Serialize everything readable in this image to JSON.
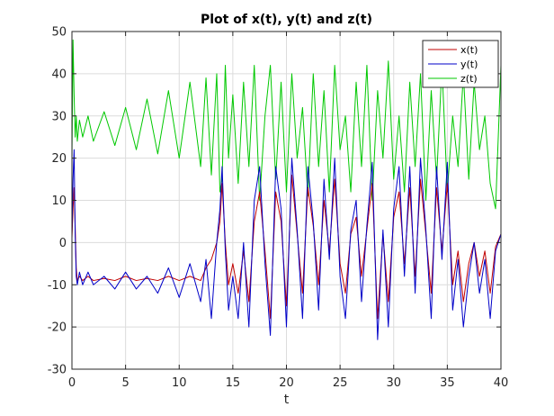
{
  "chart_data": {
    "type": "line",
    "title": "Plot of x(t), y(t) and z(t)",
    "xlabel": "t",
    "ylabel": "",
    "xlim": [
      0,
      40
    ],
    "ylim": [
      -30,
      50
    ],
    "xticks": [
      0,
      5,
      10,
      15,
      20,
      25,
      30,
      35,
      40
    ],
    "yticks": [
      -30,
      -20,
      -10,
      0,
      10,
      20,
      30,
      40,
      50
    ],
    "grid": true,
    "legend": {
      "position": "top-right"
    },
    "series": [
      {
        "name": "x(t)",
        "color": "#c00000",
        "x": [
          0,
          0.1,
          0.2,
          0.3,
          0.4,
          0.5,
          0.7,
          1,
          1.5,
          2,
          3,
          4,
          5,
          6,
          7,
          8,
          9,
          10,
          11,
          12,
          12.5,
          13,
          13.5,
          13.8,
          14.0,
          14.3,
          14.6,
          15,
          15.5,
          16,
          16.5,
          17,
          17.5,
          18,
          18.5,
          19,
          19.5,
          20,
          20.5,
          21,
          21.5,
          22,
          22.5,
          23,
          23.5,
          24,
          24.5,
          25,
          25.5,
          26,
          26.5,
          27,
          27.5,
          28,
          28.5,
          29,
          29.5,
          30,
          30.5,
          31,
          31.5,
          32,
          32.5,
          33,
          33.5,
          34,
          34.5,
          35,
          35.5,
          36,
          36.5,
          37,
          37.5,
          38,
          38.5,
          39,
          39.5,
          40
        ],
        "y": [
          1,
          8,
          13,
          4,
          -6,
          -9,
          -8,
          -9,
          -8,
          -9,
          -8.5,
          -9,
          -8,
          -9,
          -8.5,
          -9,
          -8,
          -9,
          -8,
          -9,
          -6,
          -4,
          0,
          5,
          14,
          0,
          -10,
          -5,
          -12,
          -2,
          -14,
          5,
          12,
          -2,
          -18,
          12,
          5,
          -15,
          16,
          2,
          -12,
          13,
          4,
          -10,
          10,
          -2,
          15,
          -5,
          -12,
          2,
          6,
          -8,
          3,
          14,
          -18,
          2,
          -14,
          6,
          12,
          -5,
          13,
          -8,
          15,
          2,
          -12,
          13,
          -2,
          14,
          -10,
          -2,
          -14,
          -5,
          0,
          -8,
          -2,
          -12,
          -1,
          2
        ]
      },
      {
        "name": "y(t)",
        "color": "#0000c8",
        "x": [
          0,
          0.1,
          0.2,
          0.3,
          0.4,
          0.5,
          0.7,
          1,
          1.5,
          2,
          3,
          4,
          5,
          6,
          7,
          8,
          9,
          10,
          11,
          12,
          12.5,
          13,
          13.5,
          13.8,
          14.0,
          14.3,
          14.6,
          15,
          15.5,
          16,
          16.5,
          17,
          17.5,
          18,
          18.5,
          19,
          19.5,
          20,
          20.5,
          21,
          21.5,
          22,
          22.5,
          23,
          23.5,
          24,
          24.5,
          25,
          25.5,
          26,
          26.5,
          27,
          27.5,
          28,
          28.5,
          29,
          29.5,
          30,
          30.5,
          31,
          31.5,
          32,
          32.5,
          33,
          33.5,
          34,
          34.5,
          35,
          35.5,
          36,
          36.5,
          37,
          37.5,
          38,
          38.5,
          39,
          39.5,
          40
        ],
        "y": [
          2,
          15,
          22,
          2,
          -8,
          -10,
          -7,
          -10,
          -7,
          -10,
          -8,
          -11,
          -7,
          -11,
          -8,
          -12,
          -6,
          -13,
          -5,
          -14,
          -4,
          -18,
          0,
          8,
          18,
          -2,
          -16,
          -8,
          -18,
          0,
          -20,
          10,
          18,
          -5,
          -22,
          18,
          8,
          -20,
          20,
          3,
          -18,
          18,
          5,
          -16,
          15,
          -4,
          20,
          -8,
          -18,
          3,
          10,
          -14,
          4,
          19,
          -23,
          3,
          -20,
          8,
          18,
          -8,
          18,
          -12,
          20,
          3,
          -18,
          18,
          -4,
          19,
          -16,
          -4,
          -20,
          -8,
          0,
          -12,
          -4,
          -18,
          -2,
          2
        ]
      },
      {
        "name": "z(t)",
        "color": "#00c800",
        "x": [
          0,
          0.1,
          0.2,
          0.3,
          0.4,
          0.5,
          0.7,
          1,
          1.5,
          2,
          3,
          4,
          5,
          6,
          7,
          8,
          9,
          10,
          11,
          12,
          12.5,
          13,
          13.5,
          13.8,
          14.0,
          14.3,
          14.6,
          15,
          15.5,
          16,
          16.5,
          17,
          17.5,
          18,
          18.5,
          19,
          19.5,
          20,
          20.5,
          21,
          21.5,
          22,
          22.5,
          23,
          23.5,
          24,
          24.5,
          25,
          25.5,
          26,
          26.5,
          27,
          27.5,
          28,
          28.5,
          29,
          29.5,
          30,
          30.5,
          31,
          31.5,
          32,
          32.5,
          33,
          33.5,
          34,
          34.5,
          35,
          35.5,
          36,
          36.5,
          37,
          37.5,
          38,
          38.5,
          39,
          39.5,
          40
        ],
        "y": [
          20,
          48,
          35,
          25,
          30,
          24,
          29,
          25,
          30,
          24,
          31,
          23,
          32,
          22,
          34,
          21,
          36,
          20,
          38,
          18,
          39,
          16,
          40,
          12,
          15,
          42,
          20,
          35,
          14,
          38,
          18,
          42,
          10,
          30,
          42,
          15,
          38,
          12,
          40,
          20,
          32,
          11,
          40,
          18,
          36,
          12,
          42,
          22,
          30,
          12,
          38,
          18,
          42,
          10,
          36,
          20,
          43,
          15,
          30,
          12,
          38,
          18,
          40,
          10,
          36,
          15,
          42,
          12,
          30,
          18,
          40,
          15,
          38,
          22,
          30,
          14,
          8,
          42
        ]
      }
    ]
  }
}
